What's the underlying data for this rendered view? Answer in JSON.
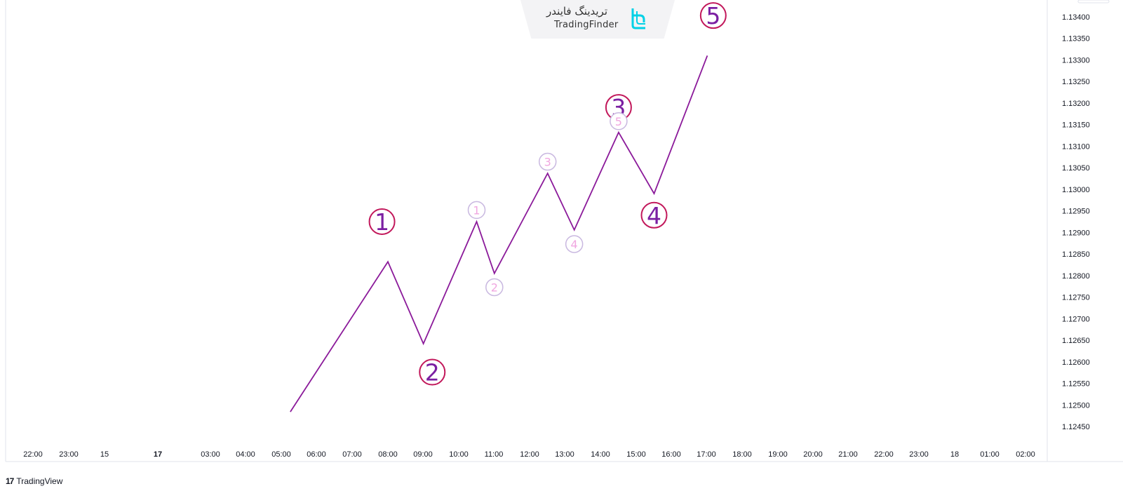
{
  "branding": {
    "name_fa": "تریدینگ فایندر",
    "name_en": "TradingFinder",
    "footer": "TradingView",
    "footer_mark": "17"
  },
  "colors": {
    "wave_line": "#8B1A9A",
    "major_ring": "#C2185B",
    "major_text": "#7B1FA2",
    "minor_ring": "#C9B8E0",
    "minor_text": "#F0A6E0",
    "grid": "#ffffff",
    "axis_border": "#e0e3eb",
    "logo": "#00D1E6"
  },
  "chart_data": {
    "type": "line",
    "title": "",
    "xlabel": "",
    "ylabel": "",
    "x_tick_labels": [
      "22:00",
      "23:00",
      "15",
      "17",
      "03:00",
      "04:00",
      "05:00",
      "06:00",
      "07:00",
      "08:00",
      "09:00",
      "10:00",
      "11:00",
      "12:00",
      "13:00",
      "14:00",
      "15:00",
      "16:00",
      "17:00",
      "18:00",
      "19:00",
      "20:00",
      "21:00",
      "22:00",
      "23:00",
      "18",
      "01:00",
      "02:00"
    ],
    "y_tick_labels": [
      "1.13400",
      "1.13350",
      "1.13300",
      "1.13250",
      "1.13200",
      "1.13150",
      "1.13100",
      "1.13050",
      "1.13000",
      "1.12950",
      "1.12900",
      "1.12850",
      "1.12800",
      "1.12750",
      "1.12700",
      "1.12650",
      "1.12600",
      "1.12550",
      "1.12500",
      "1.12450"
    ],
    "ylim": [
      1.1242,
      1.1343
    ],
    "series": [
      {
        "points": [
          {
            "x": "05:15",
            "y": 1.12484
          },
          {
            "x": "08:00",
            "y": 1.12832
          },
          {
            "x": "09:00",
            "y": 1.12642
          },
          {
            "x": "10:30",
            "y": 1.12925
          },
          {
            "x": "11:00",
            "y": 1.12805
          },
          {
            "x": "12:30",
            "y": 1.13037
          },
          {
            "x": "13:15",
            "y": 1.12906
          },
          {
            "x": "14:30",
            "y": 1.13132
          },
          {
            "x": "15:30",
            "y": 1.1299
          },
          {
            "x": "17:00",
            "y": 1.1331
          }
        ]
      }
    ],
    "major_wave_labels": [
      {
        "label": "1",
        "x": "07:50",
        "y": 1.12925
      },
      {
        "label": "2",
        "x": "09:15",
        "y": 1.12576
      },
      {
        "label": "3",
        "x": "14:30",
        "y": 1.1319
      },
      {
        "label": "4",
        "x": "15:30",
        "y": 1.1294
      },
      {
        "label": "5",
        "x": "17:10",
        "y": 1.13403
      }
    ],
    "minor_wave_labels": [
      {
        "label": "1",
        "x": "10:30",
        "y": 1.12952
      },
      {
        "label": "2",
        "x": "11:00",
        "y": 1.12773
      },
      {
        "label": "3",
        "x": "12:30",
        "y": 1.13064
      },
      {
        "label": "4",
        "x": "13:15",
        "y": 1.12873
      },
      {
        "label": "5",
        "x": "14:30",
        "y": 1.13158
      }
    ]
  }
}
